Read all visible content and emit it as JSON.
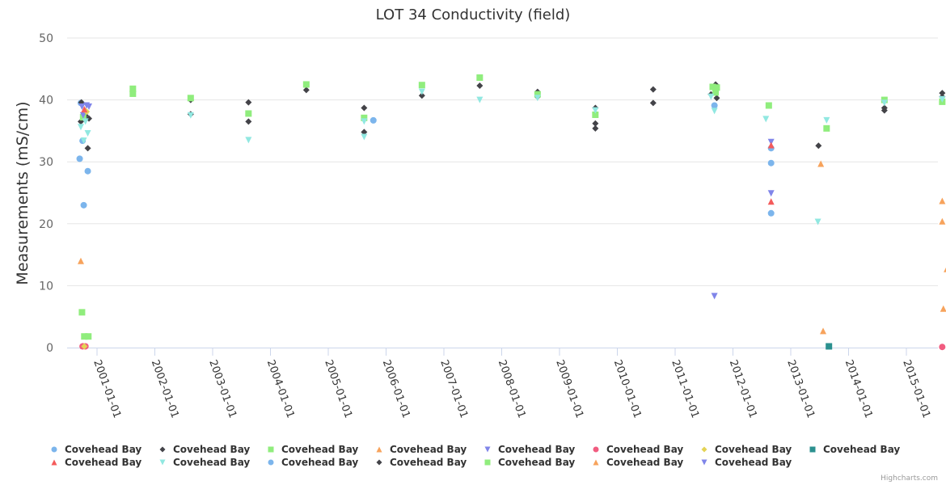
{
  "credits": "Highcharts.com",
  "chart_data": {
    "type": "scatter",
    "title": "LOT 34 Conductivity (field)",
    "xlabel": "",
    "ylabel": "Measurements (mS/cm)",
    "ylim": [
      0,
      50
    ],
    "yticks": [
      0,
      10,
      20,
      30,
      40,
      50
    ],
    "xlim": [
      "2000-06-15",
      "2015-08-15"
    ],
    "xticks": [
      "2001-01-01",
      "2002-01-01",
      "2003-01-01",
      "2004-01-01",
      "2005-01-01",
      "2006-01-01",
      "2007-01-01",
      "2008-01-01",
      "2009-01-01",
      "2010-01-01",
      "2011-01-01",
      "2012-01-01",
      "2013-01-01",
      "2014-01-01",
      "2015-01-01"
    ],
    "grid": true,
    "legend": "bottom",
    "series": [
      {
        "name": "Covehead Bay",
        "symbol": "circle",
        "color": "#7cb5ec",
        "points": [
          [
            2000.72,
            39.5
          ],
          [
            2000.7,
            30.5
          ],
          [
            2000.75,
            33.4
          ],
          [
            2000.77,
            23
          ],
          [
            2000.84,
            28.5
          ],
          [
            2000.78,
            37.5
          ],
          [
            2012.66,
            32.2
          ],
          [
            2012.66,
            29.8
          ],
          [
            2012.66,
            21.7
          ],
          [
            2011.68,
            39.1
          ],
          [
            2005.78,
            36.7
          ]
        ]
      },
      {
        "name": "Covehead Bay",
        "symbol": "diamond",
        "color": "#434348",
        "points": [
          [
            2000.73,
            39.6
          ],
          [
            2000.72,
            36.5
          ],
          [
            2000.8,
            37.5
          ],
          [
            2000.86,
            37.0
          ],
          [
            2000.84,
            32.2
          ],
          [
            2001.62,
            41.3
          ],
          [
            2002.62,
            40.0
          ],
          [
            2002.62,
            37.7
          ],
          [
            2003.62,
            39.6
          ],
          [
            2003.62,
            36.5
          ],
          [
            2004.62,
            41.6
          ],
          [
            2005.62,
            38.7
          ],
          [
            2005.62,
            34.8
          ],
          [
            2006.62,
            40.7
          ],
          [
            2007.62,
            42.3
          ],
          [
            2008.62,
            41.3
          ],
          [
            2008.62,
            40.5
          ],
          [
            2009.62,
            38.7
          ],
          [
            2009.62,
            36.2
          ],
          [
            2009.62,
            35.4
          ],
          [
            2010.62,
            41.7
          ],
          [
            2010.62,
            39.5
          ],
          [
            2011.62,
            40.9
          ],
          [
            2011.7,
            42.5
          ],
          [
            2011.72,
            40.3
          ],
          [
            2013.48,
            32.6
          ],
          [
            2014.62,
            38.7
          ],
          [
            2014.62,
            38.3
          ],
          [
            2015.62,
            41.1
          ],
          [
            2015.62,
            40.5
          ]
        ]
      },
      {
        "name": "Covehead Bay",
        "symbol": "square",
        "color": "#90ed7d",
        "points": [
          [
            2000.74,
            5.7
          ],
          [
            2000.78,
            1.8
          ],
          [
            2000.85,
            1.8
          ],
          [
            2000.76,
            37.2
          ],
          [
            2001.62,
            41.8
          ],
          [
            2001.62,
            41.0
          ],
          [
            2002.62,
            40.3
          ],
          [
            2003.62,
            37.8
          ],
          [
            2004.62,
            42.5
          ],
          [
            2005.62,
            37.1
          ],
          [
            2006.62,
            42.4
          ],
          [
            2007.62,
            43.6
          ],
          [
            2008.62,
            40.9
          ],
          [
            2009.62,
            37.6
          ],
          [
            2011.65,
            42.1
          ],
          [
            2011.72,
            42.0
          ],
          [
            2011.7,
            41.2
          ],
          [
            2012.62,
            39.1
          ],
          [
            2013.62,
            35.4
          ],
          [
            2014.62,
            40.0
          ],
          [
            2015.62,
            39.7
          ]
        ]
      },
      {
        "name": "Covehead Bay",
        "symbol": "triangle",
        "color": "#f7a35c",
        "points": [
          [
            2000.72,
            14.0
          ],
          [
            2000.8,
            38.3
          ],
          [
            2000.76,
            0.3
          ],
          [
            2013.52,
            29.7
          ],
          [
            2013.56,
            2.7
          ],
          [
            2015.62,
            23.7
          ],
          [
            2015.75,
            23.3
          ],
          [
            2015.62,
            20.4
          ],
          [
            2015.7,
            12.7
          ],
          [
            2015.64,
            6.3
          ]
        ]
      },
      {
        "name": "Covehead Bay",
        "symbol": "triangle-down",
        "color": "#8085e9",
        "points": [
          [
            2000.74,
            38.9
          ],
          [
            2000.82,
            39.1
          ],
          [
            2000.86,
            38.9
          ],
          [
            2000.76,
            37.5
          ],
          [
            2011.68,
            8.3
          ],
          [
            2012.66,
            33.2
          ],
          [
            2012.66,
            24.9
          ]
        ]
      },
      {
        "name": "Covehead Bay",
        "symbol": "circle",
        "color": "#f15c80",
        "points": [
          [
            2000.75,
            0.2
          ],
          [
            2000.8,
            0.2
          ],
          [
            2015.62,
            0.1
          ],
          [
            2015.75,
            0.2
          ]
        ]
      },
      {
        "name": "Covehead Bay",
        "symbol": "diamond",
        "color": "#e4d354",
        "points": [
          [
            2000.78,
            0.2
          ],
          [
            2000.82,
            38.1
          ]
        ]
      },
      {
        "name": "Covehead Bay",
        "symbol": "square",
        "color": "#2b908f",
        "points": [
          [
            2013.66,
            0.2
          ]
        ]
      },
      {
        "name": "Covehead Bay",
        "symbol": "triangle",
        "color": "#f45b5b",
        "points": [
          [
            2000.78,
            38.5
          ],
          [
            2012.66,
            32.7
          ],
          [
            2012.66,
            23.6
          ]
        ]
      },
      {
        "name": "Covehead Bay",
        "symbol": "triangle-down",
        "color": "#91e8e1",
        "points": [
          [
            2000.72,
            35.6
          ],
          [
            2000.84,
            34.6
          ],
          [
            2000.8,
            36.5
          ],
          [
            2000.77,
            33.4
          ],
          [
            2002.62,
            37.5
          ],
          [
            2003.62,
            33.5
          ],
          [
            2005.62,
            36.5
          ],
          [
            2005.62,
            34.0
          ],
          [
            2006.62,
            41.3
          ],
          [
            2007.62,
            40.0
          ],
          [
            2008.62,
            40.3
          ],
          [
            2009.62,
            38.3
          ],
          [
            2011.68,
            38.2
          ],
          [
            2011.62,
            40.5
          ],
          [
            2012.57,
            36.9
          ],
          [
            2013.47,
            20.3
          ],
          [
            2013.62,
            36.7
          ],
          [
            2014.62,
            39.5
          ],
          [
            2015.62,
            40.1
          ]
        ]
      },
      {
        "name": "Covehead Bay",
        "symbol": "circle",
        "color": "#7cb5ec",
        "points": []
      },
      {
        "name": "Covehead Bay",
        "symbol": "diamond",
        "color": "#434348",
        "points": []
      },
      {
        "name": "Covehead Bay",
        "symbol": "square",
        "color": "#90ed7d",
        "points": []
      },
      {
        "name": "Covehead Bay",
        "symbol": "triangle",
        "color": "#f7a35c",
        "points": []
      },
      {
        "name": "Covehead Bay",
        "symbol": "triangle-down",
        "color": "#8085e9",
        "points": []
      }
    ]
  }
}
